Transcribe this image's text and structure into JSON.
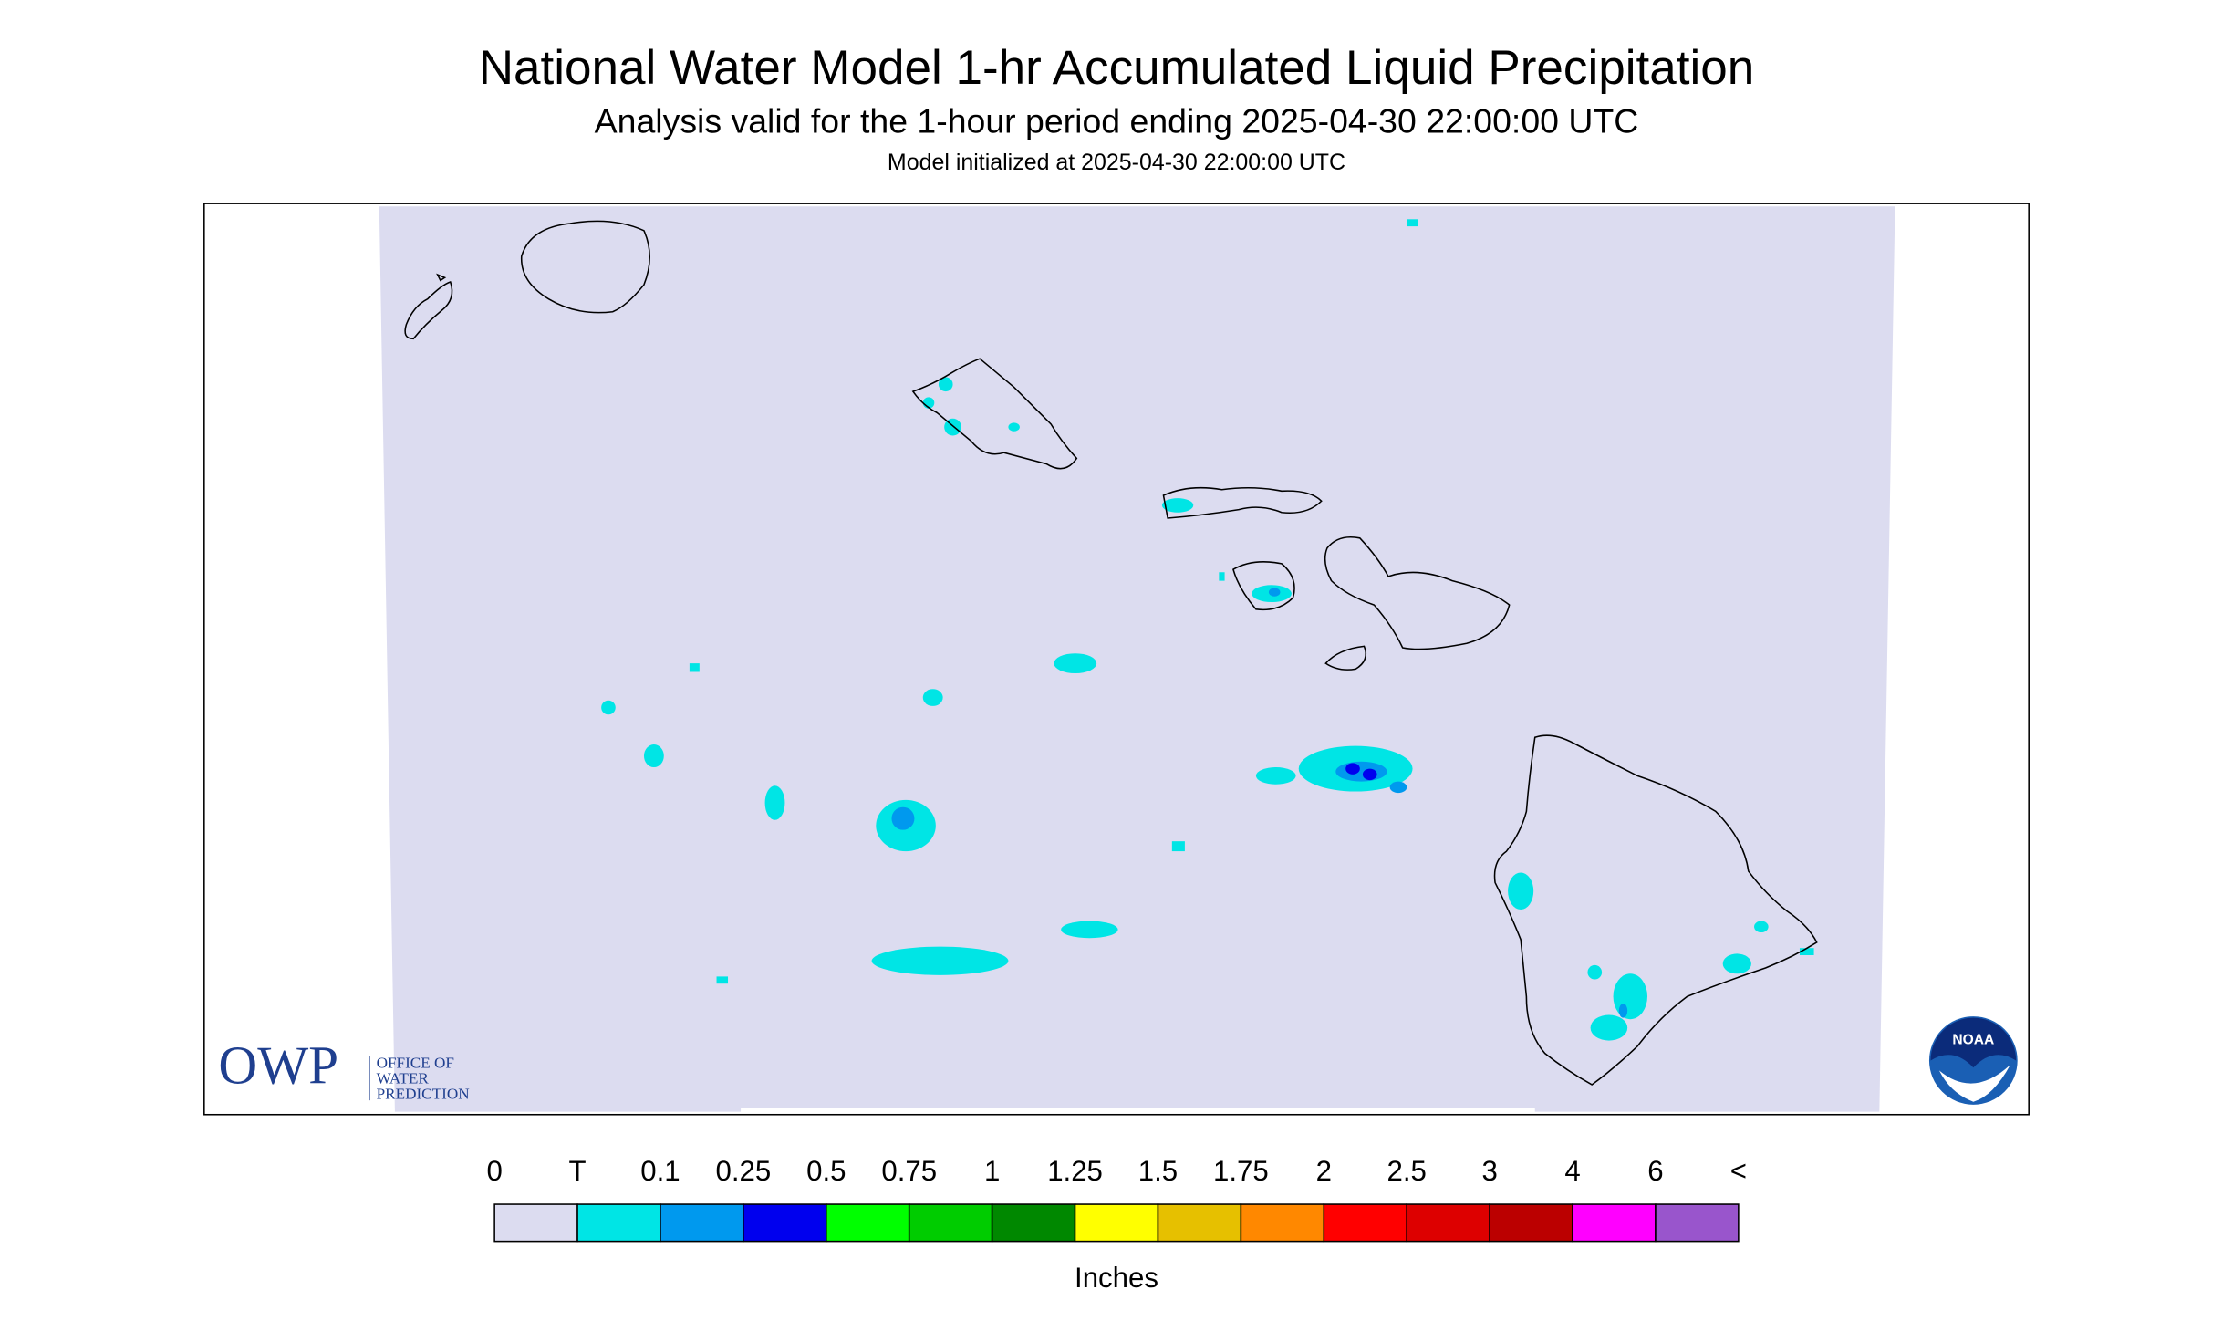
{
  "header": {
    "title": "National Water Model 1-hr Accumulated Liquid Precipitation",
    "subtitle": "Analysis valid for the 1-hour period ending 2025-04-30 22:00:00 UTC",
    "note": "Model initialized at 2025-04-30 22:00:00 UTC"
  },
  "logos": {
    "owp": "OWP",
    "owp_lines": [
      "OFFICE OF",
      "WATER",
      "PREDICTION"
    ],
    "noaa": "NOAA"
  },
  "legend": {
    "labels": [
      "0",
      "T",
      "0.1",
      "0.25",
      "0.5",
      "0.75",
      "1",
      "1.25",
      "1.5",
      "1.75",
      "2",
      "2.5",
      "3",
      "4",
      "6",
      "<"
    ],
    "colors": [
      "#dcdcf0",
      "#00e5e5",
      "#0099ee",
      "#0000ee",
      "#00ff00",
      "#00cc00",
      "#008800",
      "#ffff00",
      "#e6c000",
      "#ff8800",
      "#ff0000",
      "#dd0000",
      "#bb0000",
      "#ff00ff",
      "#9955cc"
    ],
    "unit": "Inches"
  }
}
